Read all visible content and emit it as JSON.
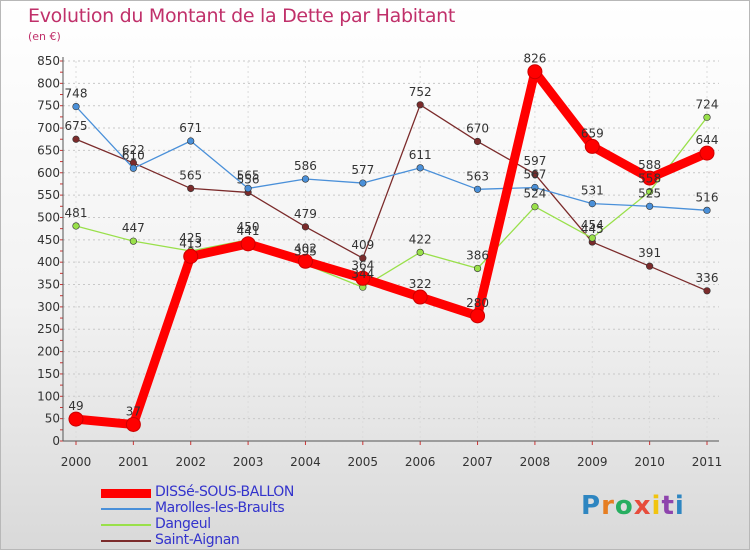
{
  "title": "Evolution du Montant de la Dette par Habitant",
  "subtitle": "(en €)",
  "logo": {
    "text": "Proxiti",
    "colors": [
      "#2e86c1",
      "#e67e22",
      "#27ae60",
      "#e74c3c",
      "#f1c40f",
      "#8e44ad",
      "#2e86c1"
    ]
  },
  "chart_data": {
    "type": "line",
    "title": "Evolution du Montant de la Dette par Habitant",
    "ylabel": "(en €)",
    "xlabel": "",
    "x": [
      "2000",
      "2001",
      "2002",
      "2003",
      "2004",
      "2005",
      "2006",
      "2007",
      "2008",
      "2009",
      "2010",
      "2011"
    ],
    "ylim": [
      0,
      850
    ],
    "yticks": [
      "0",
      "50",
      "100",
      "150",
      "200",
      "250",
      "300",
      "350",
      "400",
      "450",
      "500",
      "550",
      "600",
      "650",
      "700",
      "750",
      "800",
      "850"
    ],
    "grid": "horizontal dashed",
    "legend_position": "bottom-left",
    "series": [
      {
        "name": "DISSé-SOUS-BALLON",
        "color": "#ff0000",
        "values": [
          49,
          37,
          413,
          441,
          402,
          364,
          322,
          280,
          826,
          659,
          588,
          644
        ],
        "labels": [
          "49",
          "37",
          "413",
          "441",
          "402",
          "364",
          "322",
          "280",
          "826",
          "659",
          "588",
          "644"
        ]
      },
      {
        "name": "Marolles-les-Braults",
        "color": "#4a90d9",
        "values": [
          748,
          610,
          671,
          565,
          586,
          577,
          611,
          563,
          567,
          531,
          525,
          516
        ],
        "labels": [
          "748",
          "610",
          "671",
          "565",
          "586",
          "577",
          "611",
          "563",
          "567",
          "531",
          "525",
          "516"
        ]
      },
      {
        "name": "Dangeul",
        "color": "#99e04a",
        "values": [
          481,
          447,
          425,
          450,
          395,
          344,
          422,
          386,
          524,
          454,
          558,
          724
        ],
        "labels": [
          "481",
          "447",
          "425",
          "450",
          "395",
          "344",
          "422",
          "386",
          "524",
          "454",
          "558",
          "724"
        ]
      },
      {
        "name": "Saint-Aignan",
        "color": "#7b2b2b",
        "values": [
          675,
          622,
          565,
          556,
          479,
          409,
          752,
          670,
          597,
          445,
          391,
          336
        ],
        "labels": [
          "675",
          "622",
          "565",
          "556",
          "479",
          "409",
          "752",
          "670",
          "597",
          "445",
          "391",
          "336"
        ]
      }
    ]
  }
}
